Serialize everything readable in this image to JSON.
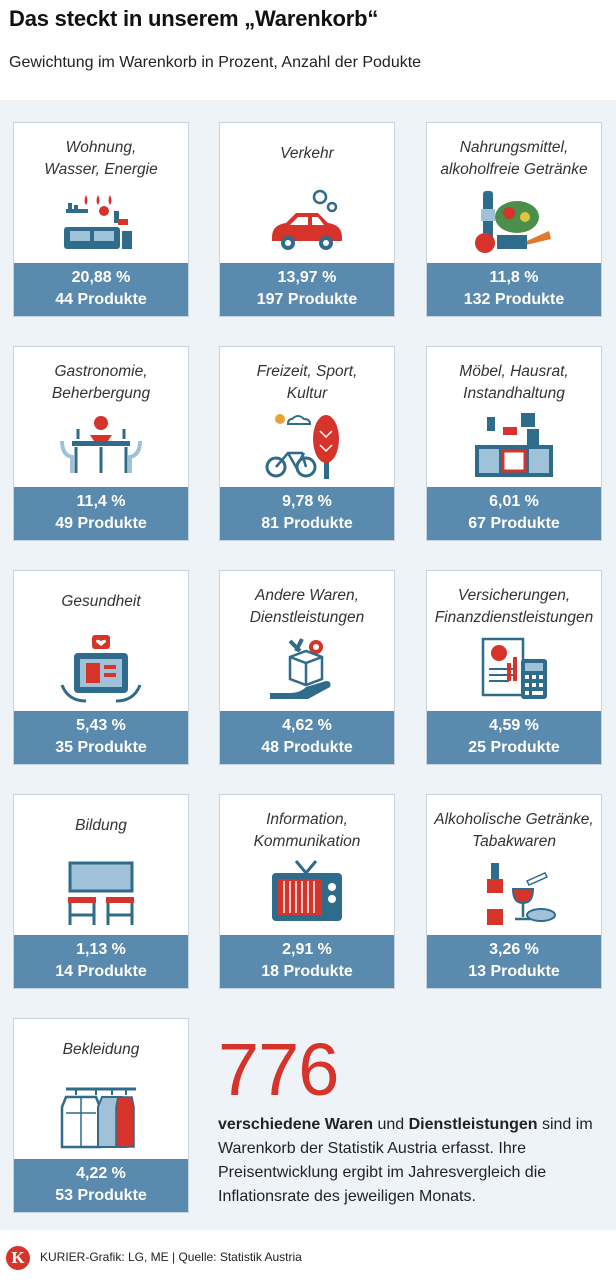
{
  "header": {
    "title": "Das steckt in unserem „Warenkorb“",
    "subtitle": "Gewichtung im Warenkorb in Prozent, Anzahl der Podukte"
  },
  "categories": [
    {
      "label": "Wohnung,\nWasser, Energie",
      "percent": "20,88 %",
      "count": "44 Produkte",
      "icon": "home-furniture-icon"
    },
    {
      "label": "Verkehr",
      "percent": "13,97 %",
      "count": "197 Produkte",
      "icon": "car-icon"
    },
    {
      "label": "Nahrungsmittel,\nalkoholfreie Getränke",
      "percent": "11,8 %",
      "count": "132 Produkte",
      "icon": "groceries-icon"
    },
    {
      "label": "Gastronomie,\nBeherbergung",
      "percent": "11,4 %",
      "count": "49 Produkte",
      "icon": "dining-table-icon"
    },
    {
      "label": "Freizeit, Sport,\nKultur",
      "percent": "9,78 %",
      "count": "81 Produkte",
      "icon": "bicycle-tree-icon"
    },
    {
      "label": "Möbel, Hausrat,\nInstandhaltung",
      "percent": "6,01 %",
      "count": "67 Produkte",
      "icon": "kitchen-icon"
    },
    {
      "label": "Gesundheit",
      "percent": "5,43 %",
      "count": "35 Produkte",
      "icon": "health-tablet-icon"
    },
    {
      "label": "Andere Waren,\nDienstleistungen",
      "percent": "4,62 %",
      "count": "48 Produkte",
      "icon": "service-box-icon"
    },
    {
      "label": "Versicherungen,\nFinanzdienstleistungen",
      "percent": "4,59 %",
      "count": "25 Produkte",
      "icon": "calculator-invoice-icon"
    },
    {
      "label": "Bildung",
      "percent": "1,13 %",
      "count": "14 Produkte",
      "icon": "classroom-icon"
    },
    {
      "label": "Information,\nKommunikation",
      "percent": "2,91 %",
      "count": "18 Produkte",
      "icon": "television-icon"
    },
    {
      "label": "Alkoholische Getränke,\nTabakwaren",
      "percent": "3,26 %",
      "count": "13 Produkte",
      "icon": "wine-cigarette-icon"
    },
    {
      "label": "Bekleidung",
      "percent": "4,22 %",
      "count": "53 Produkte",
      "icon": "clothes-rack-icon"
    }
  ],
  "summary": {
    "number": "776",
    "text_bold1": "verschiedene Waren",
    "text_mid": " und ",
    "text_bold2": "Dienstleistungen",
    "text_rest": " sind im Warenkorb der Statistik Austria erfasst. Ihre Preisentwicklung ergibt im Jahresvergleich die Inflationsrate des jeweiligen Monats."
  },
  "footer": {
    "logo_letter": "K",
    "credit": "KURIER-Grafik: LG, ME | Quelle: Statistik Austria"
  },
  "colors": {
    "accent": "#d6332a",
    "bar": "#5a8aad",
    "icon_dark": "#2f6b8a",
    "panel": "#eef3f8"
  }
}
